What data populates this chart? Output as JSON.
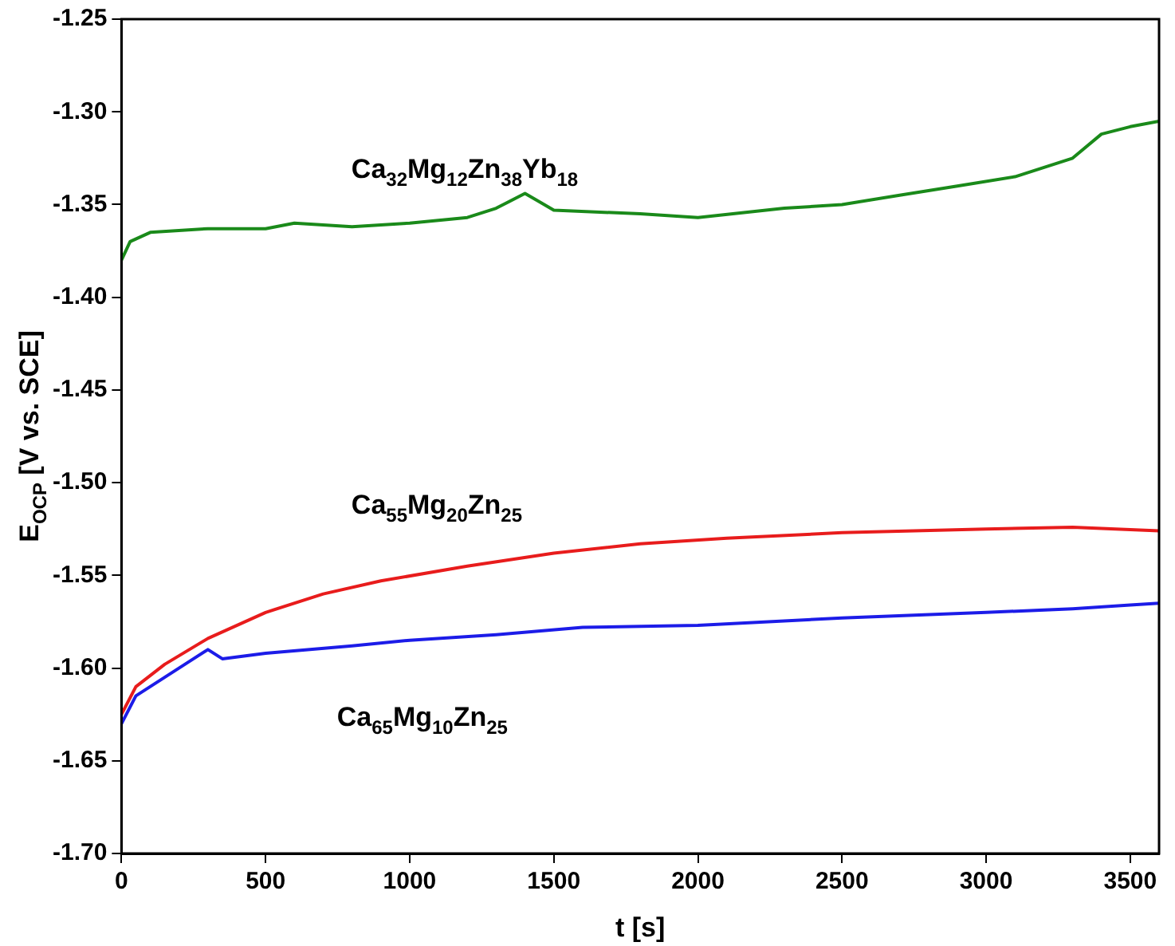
{
  "chart_data": {
    "type": "line",
    "xlabel": "t [s]",
    "ylabel": "E$_{OCP}$ [V vs. SCE]",
    "xlim": [
      0,
      3600
    ],
    "xticks": [
      0,
      500,
      1000,
      1500,
      2000,
      2500,
      3000,
      3500
    ],
    "ylim": [
      -1.7,
      -1.25
    ],
    "yticks": [
      {
        "value": -1.7,
        "label": "-1.70"
      },
      {
        "value": -1.65,
        "label": "-1.65"
      },
      {
        "value": -1.6,
        "label": "-1.60"
      },
      {
        "value": -1.55,
        "label": "-1.55"
      },
      {
        "value": -1.5,
        "label": "-1.50"
      },
      {
        "value": -1.45,
        "label": "-1.45"
      },
      {
        "value": -1.4,
        "label": "-1.40"
      },
      {
        "value": -1.35,
        "label": "-1.35"
      },
      {
        "value": -1.3,
        "label": "-1.30"
      },
      {
        "value": -1.25,
        "label": "-1.25"
      }
    ],
    "grid": false,
    "legend": false,
    "marker": "none",
    "line_style": "solid",
    "series": [
      {
        "name": "Ca$_{32}$Mg$_{12}$Zn$_{38}$Yb$_{18}$",
        "color": "#1a8a1a",
        "x": [
          0,
          30,
          100,
          300,
          500,
          600,
          800,
          1000,
          1200,
          1300,
          1400,
          1500,
          1800,
          2000,
          2300,
          2500,
          2700,
          2900,
          3100,
          3300,
          3400,
          3500,
          3600
        ],
        "values": [
          -1.38,
          -1.37,
          -1.365,
          -1.363,
          -1.363,
          -1.36,
          -1.362,
          -1.36,
          -1.357,
          -1.352,
          -1.344,
          -1.353,
          -1.355,
          -1.357,
          -1.352,
          -1.35,
          -1.345,
          -1.34,
          -1.335,
          -1.325,
          -1.312,
          -1.308,
          -1.305
        ]
      },
      {
        "name": "Ca$_{55}$Mg$_{20}$Zn$_{25}$",
        "color": "#e81c1c",
        "x": [
          0,
          50,
          150,
          300,
          500,
          700,
          900,
          1200,
          1500,
          1800,
          2100,
          2500,
          3000,
          3300,
          3600
        ],
        "values": [
          -1.625,
          -1.61,
          -1.598,
          -1.584,
          -1.57,
          -1.56,
          -1.553,
          -1.545,
          -1.538,
          -1.533,
          -1.53,
          -1.527,
          -1.525,
          -1.524,
          -1.526
        ]
      },
      {
        "name": "Ca$_{65}$Mg$_{10}$Zn$_{25}$",
        "color": "#1c1ce8",
        "x": [
          0,
          50,
          150,
          250,
          300,
          350,
          500,
          800,
          1000,
          1300,
          1600,
          2000,
          2500,
          3000,
          3300,
          3500,
          3600
        ],
        "values": [
          -1.63,
          -1.615,
          -1.605,
          -1.595,
          -1.59,
          -1.595,
          -1.592,
          -1.588,
          -1.585,
          -1.582,
          -1.578,
          -1.577,
          -1.573,
          -1.57,
          -1.568,
          -1.566,
          -1.565
        ]
      }
    ]
  }
}
